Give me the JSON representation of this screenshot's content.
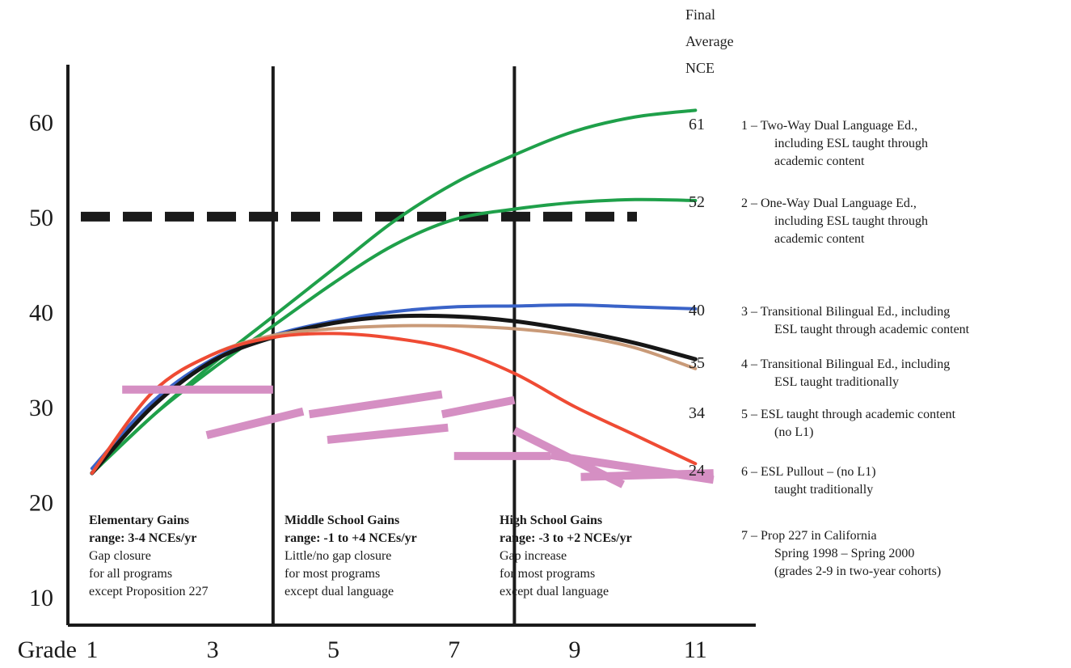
{
  "chart_data": {
    "type": "line",
    "xlabel": "Grade",
    "x_ticks": [
      "1",
      "3",
      "5",
      "7",
      "9",
      "11"
    ],
    "y_ticks": [
      "10",
      "20",
      "30",
      "40",
      "50",
      "60"
    ],
    "xlim": [
      0.6,
      12.0
    ],
    "ylim": [
      7,
      66
    ],
    "reference_line": {
      "y": 50,
      "style": "dashed",
      "color": "#1a1a1a"
    },
    "dividers": [
      {
        "x": 4.0
      },
      {
        "x": 8.0
      }
    ],
    "side_title": [
      "Final",
      "Average",
      "NCE"
    ],
    "legend": [
      {
        "final": "61",
        "lines": [
          "1 – Two-Way Dual Language Ed.,",
          "including ESL taught through",
          "academic content"
        ]
      },
      {
        "final": "52",
        "lines": [
          "2 – One-Way Dual Language Ed.,",
          "including ESL taught through",
          "academic content"
        ]
      },
      {
        "final": "40",
        "lines": [
          "3 – Transitional Bilingual Ed., including",
          "ESL taught through academic content"
        ]
      },
      {
        "final": "35",
        "lines": [
          "4 – Transitional Bilingual Ed., including",
          "ESL taught traditionally"
        ]
      },
      {
        "final": "34",
        "lines": [
          "5 – ESL taught through academic content",
          "(no L1)"
        ]
      },
      {
        "final": "24",
        "lines": [
          "6 – ESL Pullout – (no L1)",
          "taught traditionally"
        ]
      },
      {
        "final": "",
        "lines": [
          "7 – Prop 227 in California",
          "Spring 1998 – Spring 2000",
          "(grades 2-9 in two-year cohorts)"
        ]
      }
    ],
    "regions": [
      {
        "lines": [
          "Elementary Gains",
          "range: 3-4 NCEs/yr",
          "Gap closure",
          "for all programs",
          "except Proposition 227"
        ]
      },
      {
        "lines": [
          "Middle School Gains",
          "range: -1 to +4 NCEs/yr",
          "Little/no gap closure",
          "for most programs",
          "except dual language"
        ]
      },
      {
        "lines": [
          "High School Gains",
          "range: -3 to +2 NCEs/yr",
          "Gap increase",
          "for most programs",
          "except dual language"
        ]
      }
    ],
    "series": [
      {
        "color": "#1fa04a",
        "x": [
          1,
          2,
          3,
          4,
          5,
          6,
          7,
          8,
          9,
          10,
          11
        ],
        "y": [
          23,
          29,
          34.5,
          39.5,
          44.5,
          49.5,
          53.5,
          56.5,
          59,
          60.5,
          61.2
        ]
      },
      {
        "color": "#1fa04a",
        "x": [
          1,
          2,
          3,
          4,
          5,
          6,
          7,
          8,
          9,
          10,
          11
        ],
        "y": [
          23,
          29,
          34,
          38.5,
          43,
          47,
          49.7,
          50.8,
          51.5,
          51.8,
          51.7
        ]
      },
      {
        "color": "#3a63c8",
        "x": [
          1,
          2,
          3,
          4,
          5,
          6,
          7,
          8,
          9,
          10,
          11
        ],
        "y": [
          23.5,
          30.5,
          35,
          37.5,
          39,
          40,
          40.5,
          40.6,
          40.7,
          40.5,
          40.3
        ]
      },
      {
        "color": "#161616",
        "x": [
          1,
          2,
          3,
          4,
          5,
          6,
          7,
          8,
          9,
          10,
          11
        ],
        "y": [
          23,
          30,
          34.8,
          37.3,
          38.8,
          39.5,
          39.5,
          39,
          38,
          36.7,
          35
        ]
      },
      {
        "color": "#c99a78",
        "x": [
          1,
          2,
          3,
          4,
          5,
          6,
          7,
          8,
          9,
          10,
          11
        ],
        "y": [
          23,
          31.5,
          35.5,
          37.5,
          38.2,
          38.5,
          38.5,
          38.2,
          37.5,
          36.2,
          34
        ]
      },
      {
        "color": "#ef4b34",
        "x": [
          1,
          2,
          3,
          4,
          5,
          6,
          7,
          8,
          9,
          10,
          11
        ],
        "y": [
          23,
          31.5,
          35.5,
          37.3,
          37.7,
          37.2,
          36,
          33.5,
          30,
          27,
          24
        ]
      }
    ],
    "prop227_color": "#d58fc3",
    "prop227_segments": [
      {
        "x": [
          1.5,
          4.0
        ],
        "y": [
          31.8,
          31.8
        ]
      },
      {
        "x": [
          2.9,
          4.5
        ],
        "y": [
          27.0,
          29.5
        ]
      },
      {
        "x": [
          4.6,
          6.8
        ],
        "y": [
          29.2,
          31.3
        ]
      },
      {
        "x": [
          4.9,
          6.9
        ],
        "y": [
          26.5,
          27.8
        ]
      },
      {
        "x": [
          6.8,
          8.0
        ],
        "y": [
          29.2,
          30.7
        ]
      },
      {
        "x": [
          7.0,
          8.6
        ],
        "y": [
          24.8,
          24.8
        ]
      },
      {
        "x": [
          8.0,
          9.8
        ],
        "y": [
          27.5,
          21.8
        ]
      },
      {
        "x": [
          8.6,
          11.3
        ],
        "y": [
          24.9,
          22.3
        ]
      },
      {
        "x": [
          9.1,
          11.3
        ],
        "y": [
          22.6,
          23.0
        ]
      }
    ]
  }
}
